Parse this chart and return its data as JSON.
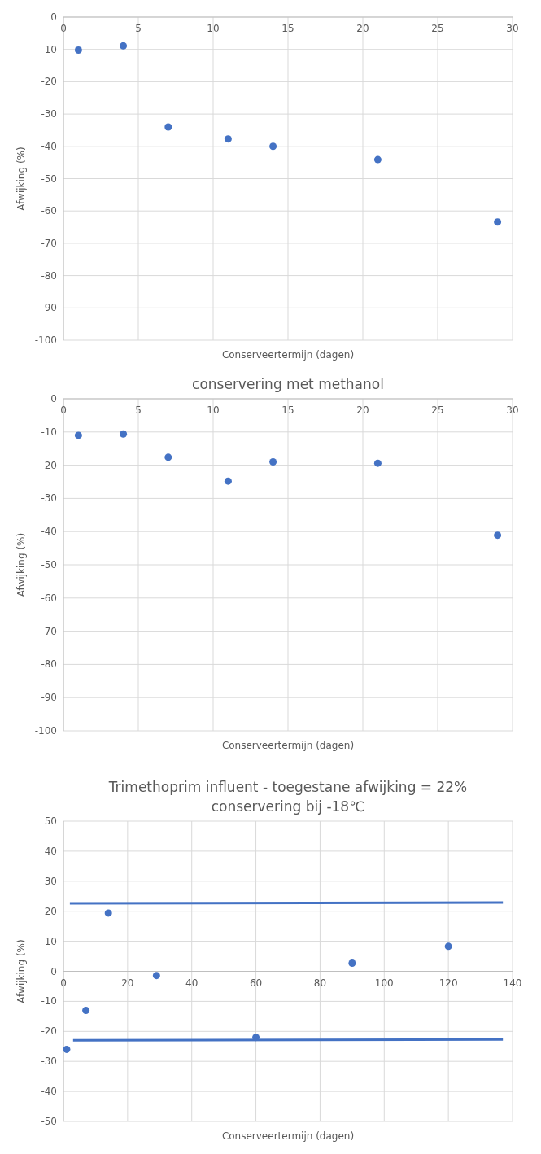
{
  "chart_data": [
    {
      "type": "scatter",
      "xlabel": "Conserveertermijn (dagen)",
      "ylabel": "Afwijking (%)",
      "xlim": [
        0,
        30
      ],
      "xticks": [
        0,
        5,
        10,
        15,
        20,
        25,
        30
      ],
      "ylim": [
        -100,
        0
      ],
      "yticks": [
        -100,
        -90,
        -80,
        -70,
        -60,
        -50,
        -40,
        -30,
        -20,
        -10,
        0
      ],
      "grid": true,
      "marker": "circle",
      "series": [
        {
          "color": "#4472c4",
          "x": [
            1,
            4,
            7,
            11,
            14,
            21,
            29
          ],
          "values": [
            -10.2,
            -8.9,
            -34,
            -37.7,
            -40,
            -44.1,
            -63.4
          ]
        }
      ]
    },
    {
      "type": "scatter",
      "title": "conservering met methanol",
      "xlabel": "Conserveertermijn (dagen)",
      "ylabel": "Afwijking (%)",
      "xlim": [
        0,
        30
      ],
      "xticks": [
        0,
        5,
        10,
        15,
        20,
        25,
        30
      ],
      "ylim": [
        -100,
        0
      ],
      "yticks": [
        -100,
        -90,
        -80,
        -70,
        -60,
        -50,
        -40,
        -30,
        -20,
        -10,
        0
      ],
      "grid": true,
      "marker": "circle",
      "series": [
        {
          "color": "#4472c4",
          "x": [
            1,
            4,
            7,
            11,
            14,
            21,
            29
          ],
          "values": [
            -11,
            -10.6,
            -17.6,
            -24.8,
            -19,
            -19.4,
            -41.1
          ]
        }
      ]
    },
    {
      "type": "scatter",
      "title": "Trimethoprim influent - toegestane afwijking = 22%",
      "subtitle": "conservering bij -18℃",
      "xlabel": "Conserveertermijn (dagen)",
      "ylabel": "Afwijking (%)",
      "xlim": [
        0,
        140
      ],
      "xticks": [
        0,
        20,
        40,
        60,
        80,
        100,
        120,
        140
      ],
      "ylim": [
        -50,
        50
      ],
      "yticks": [
        -50,
        -40,
        -30,
        -20,
        -10,
        0,
        10,
        20,
        30,
        40,
        50
      ],
      "grid": true,
      "marker": "circle",
      "series": [
        {
          "color": "#4472c4",
          "x": [
            1,
            7,
            14,
            29,
            60,
            90,
            120
          ],
          "values": [
            -26,
            -13,
            19.4,
            -1.4,
            -22,
            2.7,
            8.3
          ]
        },
        {
          "type": "line",
          "color": "#4472c4",
          "x": [
            2,
            137
          ],
          "values": [
            22.6,
            22.9
          ],
          "marker": "none"
        },
        {
          "type": "line",
          "color": "#4472c4",
          "x": [
            3,
            137
          ],
          "values": [
            -23,
            -22.7
          ],
          "marker": "none"
        }
      ]
    }
  ]
}
